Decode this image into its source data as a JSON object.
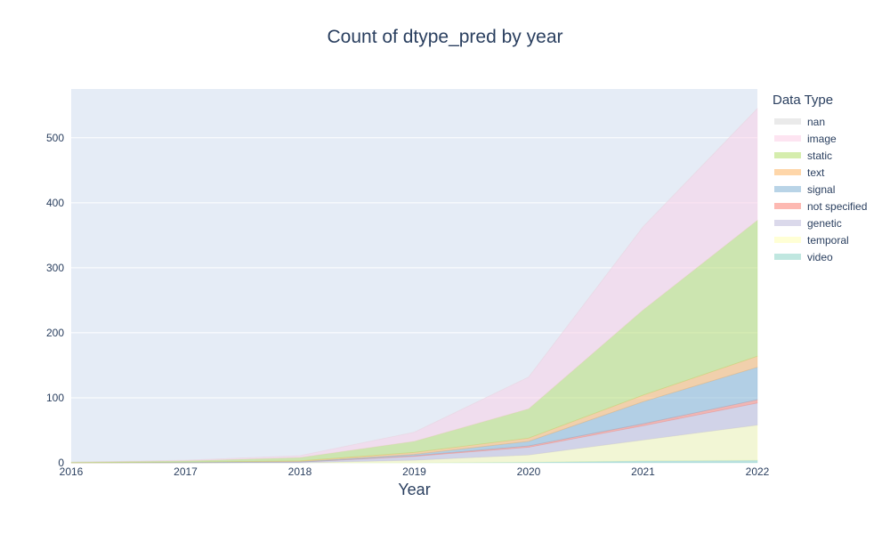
{
  "chart_data": {
    "type": "area",
    "title": "Count of dtype_pred by year",
    "xlabel": "Year",
    "ylabel": "",
    "x": [
      2016,
      2017,
      2018,
      2019,
      2020,
      2021,
      2022
    ],
    "xlim": [
      2016,
      2022
    ],
    "ylim": [
      0,
      575
    ],
    "x_ticks": [
      "2016",
      "2017",
      "2018",
      "2019",
      "2020",
      "2021",
      "2022"
    ],
    "y_ticks": [
      0,
      100,
      200,
      300,
      400,
      500
    ],
    "grid": true,
    "stacked": true,
    "legend_title": "Data Type",
    "legend_position": "right",
    "series": [
      {
        "name": "video",
        "values": [
          0,
          0,
          0,
          0,
          1,
          3,
          4
        ],
        "color": "#8dd3c7"
      },
      {
        "name": "temporal",
        "values": [
          0,
          0,
          0,
          4,
          11,
          32,
          54
        ],
        "color": "#ffffb3"
      },
      {
        "name": "genetic",
        "values": [
          0,
          0,
          1,
          6,
          12,
          22,
          34
        ],
        "color": "#bebada"
      },
      {
        "name": "not specified",
        "values": [
          0,
          0,
          0,
          1,
          2,
          3,
          5
        ],
        "color": "#fb8072"
      },
      {
        "name": "signal",
        "values": [
          0,
          1,
          1,
          2,
          7,
          34,
          50
        ],
        "color": "#80b1d3"
      },
      {
        "name": "text",
        "values": [
          0,
          0,
          1,
          3,
          5,
          10,
          17
        ],
        "color": "#fdb462"
      },
      {
        "name": "static",
        "values": [
          1,
          2,
          5,
          17,
          45,
          131,
          209
        ],
        "color": "#b3de69"
      },
      {
        "name": "image",
        "values": [
          0,
          1,
          3,
          14,
          49,
          128,
          172
        ],
        "color": "#fccde5"
      },
      {
        "name": "nan",
        "values": [
          0,
          0,
          0,
          0,
          0,
          0,
          0
        ],
        "color": "#d9d9d9"
      }
    ]
  }
}
